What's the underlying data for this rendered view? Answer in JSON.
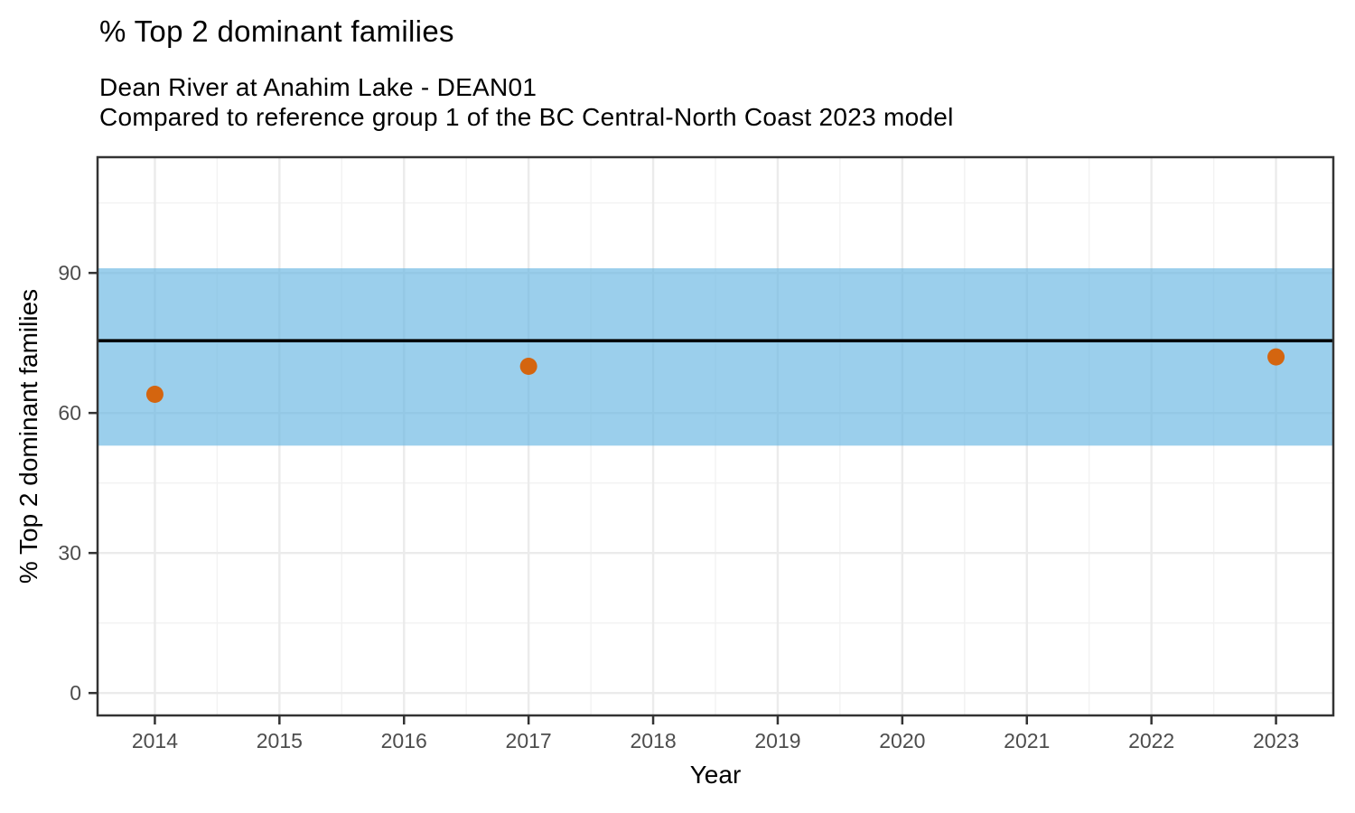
{
  "chart_data": {
    "type": "scatter",
    "title": "% Top 2 dominant families",
    "subtitle": [
      "Dean River at Anahim Lake - DEAN01",
      "Compared to reference group 1 of the BC Central-North Coast 2023 model"
    ],
    "xlabel": "Year",
    "ylabel": "% Top 2 dominant families",
    "xlim": [
      2013.54,
      2023.46
    ],
    "ylim": [
      -4.8,
      114.8
    ],
    "x_ticks": [
      2014,
      2015,
      2016,
      2017,
      2018,
      2019,
      2020,
      2021,
      2022,
      2023
    ],
    "y_ticks": [
      0,
      30,
      60,
      90
    ],
    "x_minor_ticks": [
      2014.5,
      2015.5,
      2016.5,
      2017.5,
      2018.5,
      2019.5,
      2020.5,
      2021.5,
      2022.5
    ],
    "y_minor_ticks": [
      15,
      45,
      75,
      105
    ],
    "grid": "on",
    "legend": "none",
    "reference_band": {
      "name": "reference-group-range",
      "ymin": 53,
      "ymax": 91
    },
    "reference_line": {
      "name": "reference-group-mean",
      "value": 75.5
    },
    "series": [
      {
        "name": "site-samples",
        "points": [
          {
            "year": 2014,
            "value": 64
          },
          {
            "year": 2017,
            "value": 70
          },
          {
            "year": 2023,
            "value": 72
          }
        ]
      }
    ],
    "colors": {
      "band_fill": "rgba(101,181,226,0.65)",
      "reference_line": "#000000",
      "point_fill": "#D4650F",
      "panel_border": "#333333",
      "tick_mark": "#333333",
      "grid_major": "#EBEBEB",
      "grid_minor": "#F2F2F2",
      "tick_label": "#4D4D4D",
      "text": "#000000",
      "background": "#FFFFFF"
    }
  }
}
